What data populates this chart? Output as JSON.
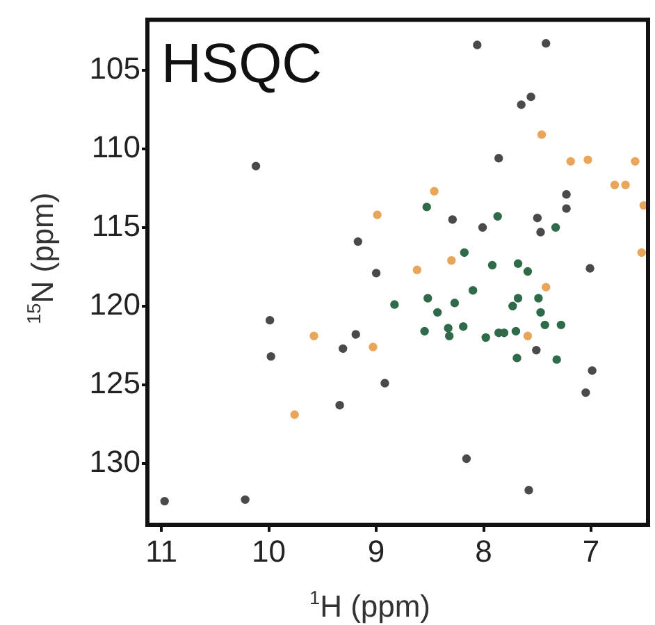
{
  "chart_data": {
    "type": "scatter",
    "title": "HSQC",
    "xlabel": "$^{1}$H (ppm)",
    "ylabel": "$^{15}$N (ppm)",
    "xlim": [
      11.13,
      6.47
    ],
    "xticks": [
      11,
      10,
      9,
      8,
      7
    ],
    "ylim": [
      133.9,
      101.8
    ],
    "yticks": [
      105,
      110,
      115,
      120,
      125,
      130
    ],
    "grid": false,
    "legend": false,
    "marker": "circle",
    "series": [
      {
        "x": [
          10.12,
          8.99,
          9.17,
          9.0,
          8.06,
          7.42,
          7.65,
          7.56,
          7.46,
          7.86,
          7.19,
          7.03,
          6.59,
          8.46,
          6.78,
          6.68,
          7.23,
          7.23,
          8.53,
          6.51,
          8.29,
          8.01,
          7.87,
          7.5,
          7.47,
          7.33,
          8.18,
          8.3,
          8.62,
          7.92,
          7.68,
          7.59,
          7.01,
          6.53,
          9.99,
          9.98,
          9.58,
          9.19,
          9.31,
          9.03,
          8.92,
          9.34,
          9.76,
          8.83,
          10.97,
          10.22,
          8.52,
          8.43,
          8.27,
          8.1,
          8.55,
          8.33,
          8.32,
          8.19,
          7.98,
          7.86,
          7.81,
          7.7,
          7.59,
          7.73,
          7.68,
          7.49,
          7.42,
          7.47,
          7.43,
          7.28,
          7.51,
          7.69,
          7.32,
          6.99,
          7.05,
          8.16,
          7.58
        ],
        "values": [
          111.1,
          114.2,
          115.9,
          117.9,
          103.4,
          103.3,
          107.2,
          106.7,
          109.1,
          110.6,
          110.8,
          110.7,
          110.8,
          112.7,
          112.3,
          112.3,
          112.9,
          113.8,
          113.7,
          113.6,
          114.5,
          115.0,
          114.3,
          114.4,
          115.3,
          115.0,
          116.6,
          117.1,
          117.7,
          117.4,
          117.3,
          117.8,
          117.6,
          116.6,
          120.9,
          123.2,
          121.9,
          121.8,
          122.7,
          122.6,
          124.9,
          126.3,
          126.9,
          119.9,
          132.4,
          132.3,
          119.5,
          120.4,
          119.8,
          119.0,
          121.6,
          121.4,
          121.9,
          121.3,
          122.0,
          121.7,
          121.7,
          121.6,
          121.9,
          120.0,
          119.5,
          119.5,
          118.8,
          120.4,
          121.2,
          121.2,
          122.8,
          123.3,
          123.4,
          124.1,
          125.5,
          129.7,
          131.7
        ],
        "colors": [
          "#4a4a4a",
          "#e9a55a",
          "#4a4a4a",
          "#4a4a4a",
          "#4a4a4a",
          "#4a4a4a",
          "#4a4a4a",
          "#4a4a4a",
          "#e9a55a",
          "#4a4a4a",
          "#e9a55a",
          "#e9a55a",
          "#e9a55a",
          "#e9a55a",
          "#e9a55a",
          "#e9a55a",
          "#4a4a4a",
          "#4a4a4a",
          "#2f6b4a",
          "#e9a55a",
          "#4a4a4a",
          "#4a4a4a",
          "#2f6b4a",
          "#4a4a4a",
          "#4a4a4a",
          "#2f6b4a",
          "#2f6b4a",
          "#e9a55a",
          "#e9a55a",
          "#2f6b4a",
          "#2f6b4a",
          "#2f6b4a",
          "#4a4a4a",
          "#e9a55a",
          "#4a4a4a",
          "#4a4a4a",
          "#e9a55a",
          "#4a4a4a",
          "#4a4a4a",
          "#e9a55a",
          "#4a4a4a",
          "#4a4a4a",
          "#e9a55a",
          "#2f6b4a",
          "#4a4a4a",
          "#4a4a4a",
          "#2f6b4a",
          "#2f6b4a",
          "#2f6b4a",
          "#2f6b4a",
          "#2f6b4a",
          "#2f6b4a",
          "#2f6b4a",
          "#2f6b4a",
          "#2f6b4a",
          "#2f6b4a",
          "#2f6b4a",
          "#2f6b4a",
          "#e9a55a",
          "#2f6b4a",
          "#2f6b4a",
          "#2f6b4a",
          "#e9a55a",
          "#2f6b4a",
          "#2f6b4a",
          "#2f6b4a",
          "#4a4a4a",
          "#2f6b4a",
          "#2f6b4a",
          "#4a4a4a",
          "#4a4a4a",
          "#4a4a4a",
          "#4a4a4a"
        ]
      }
    ]
  }
}
